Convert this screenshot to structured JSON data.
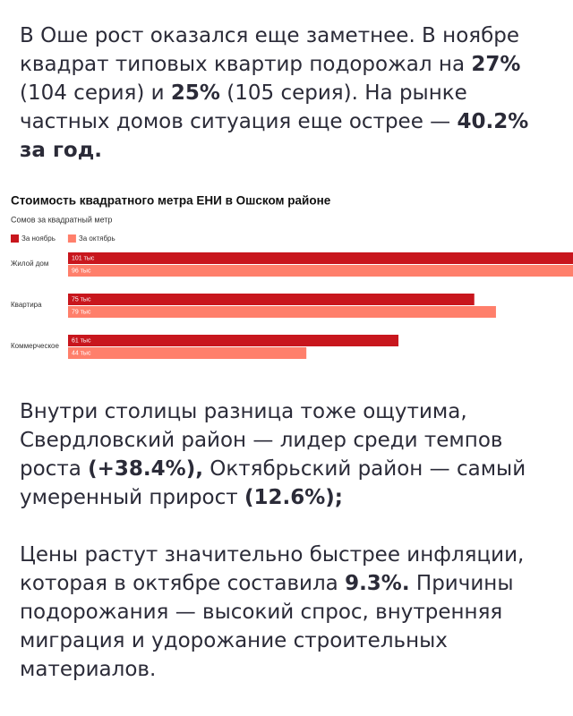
{
  "paragraphs": [
    {
      "runs": [
        {
          "text": "В Оше рост оказался еще заметнее. В ноябре квадрат типовых квартир подорожал на ",
          "bold": false
        },
        {
          "text": "27%",
          "bold": true
        },
        {
          "text": " (104 серия) и ",
          "bold": false
        },
        {
          "text": "25%",
          "bold": true
        },
        {
          "text": " (105 серия). На рынке частных домов ситуация еще острее — ",
          "bold": false
        },
        {
          "text": "40.2% за год.",
          "bold": true
        }
      ]
    },
    {
      "runs": [
        {
          "text": "Внутри столицы разница тоже ощутима, Свердловский район — лидер среди темпов роста ",
          "bold": false
        },
        {
          "text": "(+38.4%),",
          "bold": true
        },
        {
          "text": " Октябрьский район — самый умеренный прирост ",
          "bold": false
        },
        {
          "text": "(12.6%);",
          "bold": true
        }
      ]
    },
    {
      "runs": [
        {
          "text": "Цены растут значительно быстрее инфляции, которая в октябре составила ",
          "bold": false
        },
        {
          "text": "9.3%.",
          "bold": true
        },
        {
          "text": " Причины подорожания — высокий спрос, внутренняя миграция и удорожание строительных материалов.",
          "bold": false
        }
      ]
    }
  ],
  "chart_data": {
    "type": "bar",
    "orientation": "horizontal",
    "title": "Стоимость квадратного метра ЕНИ в Ошском районе",
    "subtitle": "Сомов за квадратный метр",
    "categories": [
      "Жилой дом",
      "Квартира",
      "Коммерческое"
    ],
    "series": [
      {
        "name": "За ноябрь",
        "color": "#c8161d",
        "values": [
          101,
          75,
          61
        ],
        "value_labels": [
          "101 тыс",
          "75 тыс",
          "61 тыс"
        ]
      },
      {
        "name": "За октябрь",
        "color": "#ff7f6b",
        "values": [
          96,
          79,
          44
        ],
        "value_labels": [
          "96 тыс",
          "79 тыс",
          "44 тыс"
        ]
      }
    ]
  }
}
